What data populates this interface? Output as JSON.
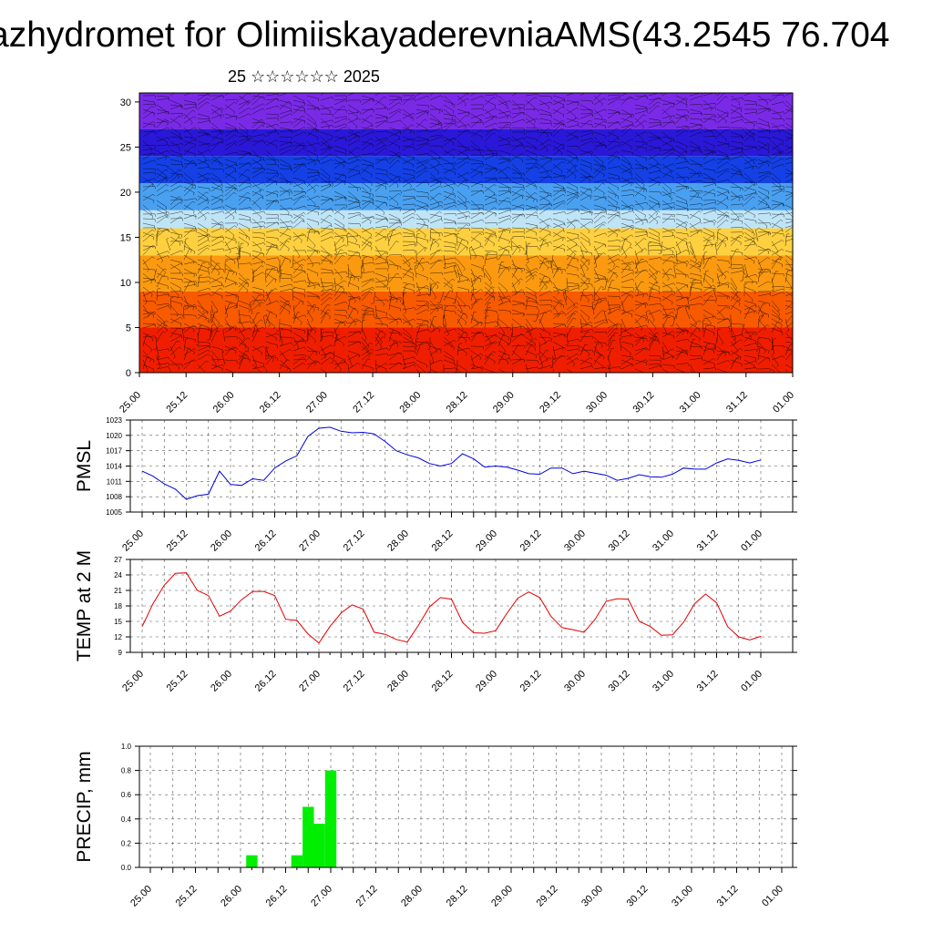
{
  "header": {
    "title": "azhydromet for OlimiiskayaderevniaAMS(43.2545 76.704",
    "subtitle": "25 ☆☆☆☆☆☆ 2025"
  },
  "time_ticks": [
    "25.00",
    "25.12",
    "26.00",
    "26.12",
    "27.00",
    "27.12",
    "28.00",
    "28.12",
    "29.00",
    "29.12",
    "30.00",
    "30.12",
    "31.00",
    "31.12",
    "01.00"
  ],
  "chart_data": [
    {
      "type": "heatmap",
      "title": "",
      "ylim": [
        0,
        31
      ],
      "yticks": [
        0,
        5,
        10,
        15,
        20,
        25,
        30
      ],
      "bands": [
        {
          "from": 0,
          "to": 5,
          "color": "#f01e00"
        },
        {
          "from": 5,
          "to": 9,
          "color": "#f85a00"
        },
        {
          "from": 9,
          "to": 13,
          "color": "#fb9a10"
        },
        {
          "from": 13,
          "to": 16,
          "color": "#fed040"
        },
        {
          "from": 16,
          "to": 18,
          "color": "#bfe4f6"
        },
        {
          "from": 18,
          "to": 21,
          "color": "#4aa0f0"
        },
        {
          "from": 21,
          "to": 24,
          "color": "#1440e6"
        },
        {
          "from": 24,
          "to": 27,
          "color": "#2a18d8"
        },
        {
          "from": 27,
          "to": 31,
          "color": "#7a2ae6"
        }
      ],
      "overlay": "wind barbs"
    },
    {
      "type": "line",
      "ylabel": "PMSL",
      "ylim": [
        1005,
        1023
      ],
      "yticks": [
        1005,
        1008,
        1011,
        1014,
        1017,
        1020,
        1023
      ],
      "color": "#0000dd",
      "values": [
        1013,
        1012,
        1010.5,
        1009.5,
        1007.5,
        1008.2,
        1008.5,
        1013,
        1010.4,
        1010.2,
        1011.5,
        1011.2,
        1013.6,
        1015,
        1016,
        1019.8,
        1021.4,
        1021.6,
        1020.8,
        1020.5,
        1020.6,
        1020.3,
        1018.8,
        1017,
        1016.2,
        1015.6,
        1014.5,
        1014,
        1014.5,
        1016.4,
        1015.4,
        1013.8,
        1014,
        1013.8,
        1013.2,
        1012.5,
        1012.4,
        1013.6,
        1013.6,
        1012.5,
        1013,
        1012.6,
        1012.2,
        1011.2,
        1011.6,
        1012.3,
        1011.9,
        1011.8,
        1012.4,
        1013.6,
        1013.4,
        1013.4,
        1014.6,
        1015.4,
        1015.1,
        1014.6,
        1015.2
      ]
    },
    {
      "type": "line",
      "ylabel": "TEMP at 2 M",
      "ylim": [
        9,
        27
      ],
      "yticks": [
        9,
        12,
        15,
        18,
        21,
        24,
        27
      ],
      "color": "#e00000",
      "values": [
        14,
        18.5,
        22,
        24.3,
        24.4,
        21,
        20,
        16,
        17,
        19.2,
        20.8,
        20.8,
        20,
        15.4,
        15.2,
        12.6,
        10.8,
        14,
        16.6,
        18.2,
        17.4,
        12.9,
        12.5,
        11.5,
        11,
        14.2,
        17.8,
        19.6,
        19.3,
        14.8,
        12.8,
        12.7,
        13.2,
        16.5,
        19.5,
        20.7,
        19.6,
        16,
        13.8,
        13.4,
        12.9,
        15.4,
        18.9,
        19.4,
        19.3,
        15,
        14,
        12.3,
        12.4,
        14.8,
        18.4,
        20.3,
        18.6,
        14,
        12,
        11.4,
        12.1
      ]
    },
    {
      "type": "bar",
      "ylabel": "PRECIP, mm",
      "ylim": [
        0,
        1.0
      ],
      "yticks": [
        "0.0",
        "0.2",
        "0.4",
        "0.6",
        "0.8",
        "1.0"
      ],
      "color": "#00ee00",
      "values": [
        0,
        0,
        0,
        0,
        0,
        0,
        0,
        0,
        0,
        0.1,
        0,
        0,
        0,
        0.1,
        0.5,
        0.36,
        0.8,
        0,
        0,
        0,
        0,
        0,
        0,
        0,
        0,
        0,
        0,
        0,
        0,
        0,
        0,
        0,
        0,
        0,
        0,
        0,
        0,
        0,
        0,
        0,
        0,
        0,
        0,
        0,
        0,
        0,
        0,
        0,
        0,
        0,
        0,
        0,
        0,
        0,
        0,
        0,
        0
      ]
    }
  ]
}
